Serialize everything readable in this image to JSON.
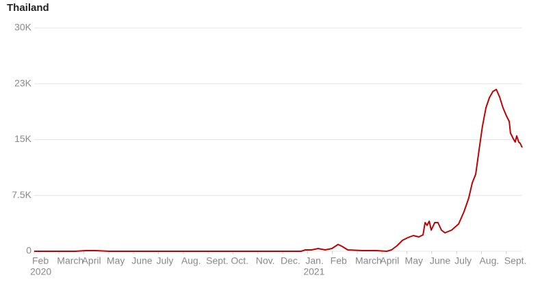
{
  "chart_data": {
    "type": "line",
    "title": "Thailand",
    "x": [
      0,
      1.65,
      2.07,
      2.48,
      3.03,
      10.74,
      10.91,
      11.16,
      11.43,
      11.71,
      11.98,
      12.23,
      12.4,
      12.62,
      13.22,
      13.77,
      14.19,
      14.38,
      14.6,
      14.82,
      15.04,
      15.26,
      15.48,
      15.65,
      15.73,
      15.81,
      15.9,
      15.98,
      16.12,
      16.25,
      16.39,
      16.53,
      16.8,
      17.08,
      17.3,
      17.49,
      17.63,
      17.77,
      17.91,
      18.04,
      18.18,
      18.32,
      18.46,
      18.6,
      18.73,
      18.87,
      19.01,
      19.12,
      19.17,
      19.28,
      19.36,
      19.42,
      19.5,
      19.56,
      19.64
    ],
    "series": [
      {
        "color": "#c00000",
        "values": [
          0,
          0,
          92,
          92,
          0,
          0,
          183,
          183,
          367,
          183,
          367,
          917,
          642,
          183,
          92,
          92,
          0,
          183,
          734,
          1468,
          1835,
          2110,
          1927,
          2202,
          3853,
          3486,
          4037,
          2844,
          3853,
          3853,
          2844,
          2477,
          2844,
          3670,
          5321,
          7156,
          9174,
          10367,
          13761,
          16789,
          19266,
          20642,
          21468,
          21743,
          20734,
          19266,
          18165,
          17431,
          15872,
          15138,
          14679,
          15505,
          14679,
          14495,
          13945
        ]
      }
    ],
    "xlim": [
      0,
      19.64
    ],
    "xticks": [
      {
        "value": 0,
        "label": "Feb"
      },
      {
        "value": 1,
        "label": "March"
      },
      {
        "value": 2,
        "label": "April"
      },
      {
        "value": 3,
        "label": "May"
      },
      {
        "value": 4,
        "label": "June"
      },
      {
        "value": 5,
        "label": "July"
      },
      {
        "value": 6,
        "label": "Aug."
      },
      {
        "value": 7,
        "label": "Sept."
      },
      {
        "value": 8,
        "label": "Oct."
      },
      {
        "value": 9,
        "label": "Nov."
      },
      {
        "value": 10,
        "label": "Dec."
      },
      {
        "value": 11,
        "label": "Jan."
      },
      {
        "value": 12,
        "label": "Feb"
      },
      {
        "value": 13,
        "label": "March"
      },
      {
        "value": 14,
        "label": "April"
      },
      {
        "value": 15,
        "label": "May"
      },
      {
        "value": 16,
        "label": "June"
      },
      {
        "value": 17,
        "label": "July"
      },
      {
        "value": 18,
        "label": "Aug."
      },
      {
        "value": 19,
        "label": "Sept."
      }
    ],
    "year_labels": [
      {
        "value": 0,
        "label": "2020"
      },
      {
        "value": 11,
        "label": "2021"
      }
    ],
    "ylim": [
      0,
      30000
    ],
    "yticks": [
      {
        "value": 0,
        "label": "0"
      },
      {
        "value": 7500,
        "label": "7.5K"
      },
      {
        "value": 15000,
        "label": "15K"
      },
      {
        "value": 22500,
        "label": "23K"
      },
      {
        "value": 30000,
        "label": "30K"
      }
    ],
    "grid": true
  }
}
